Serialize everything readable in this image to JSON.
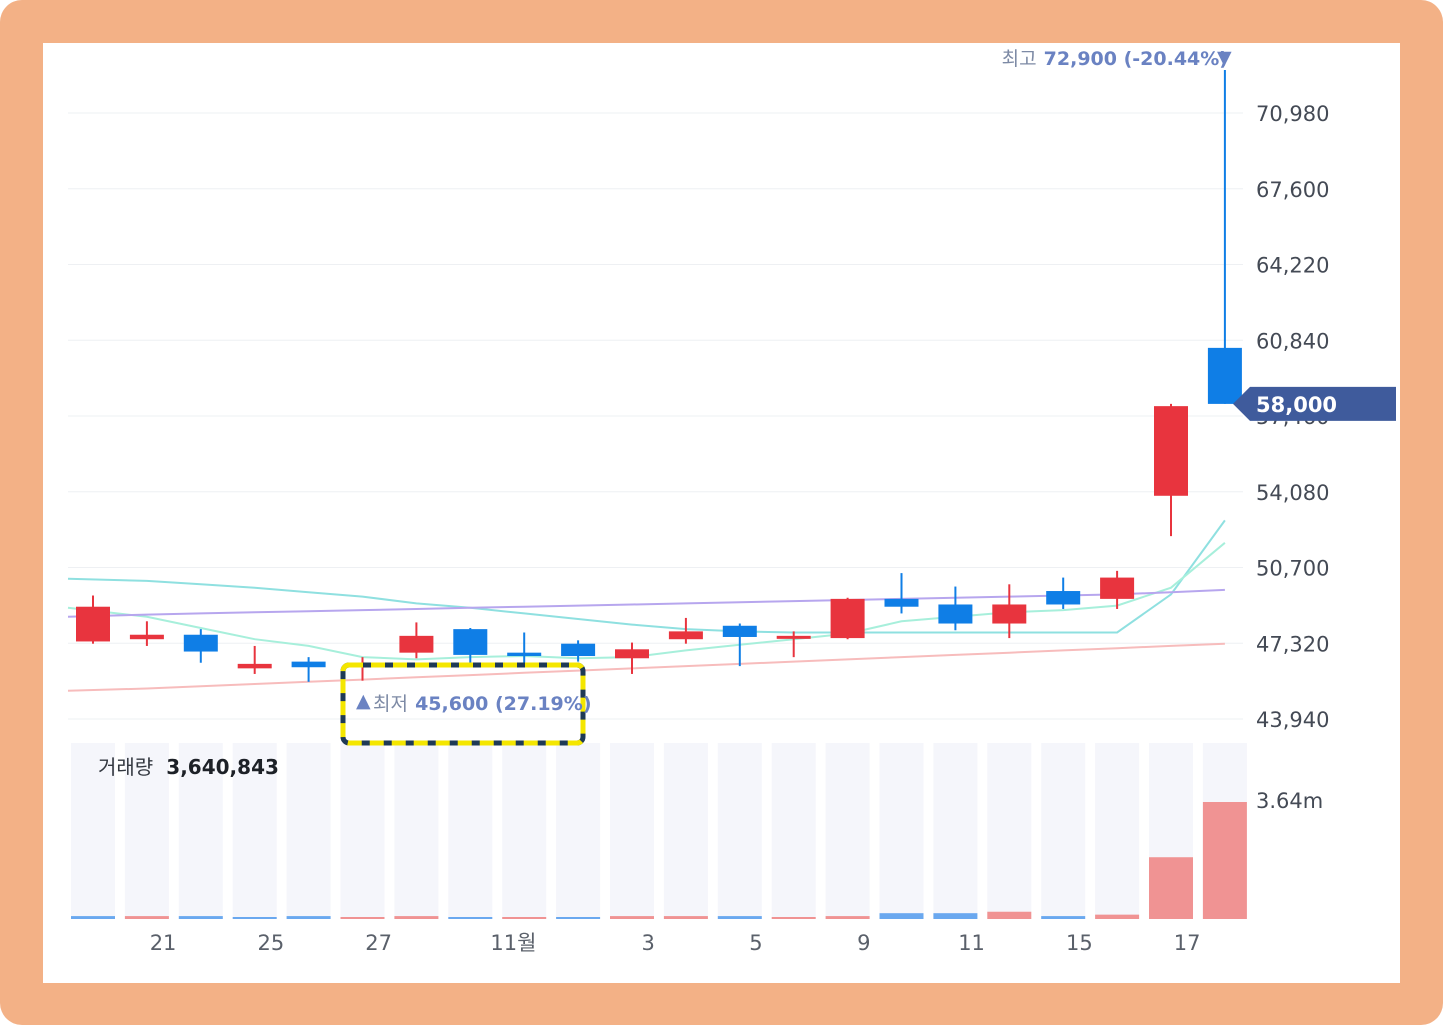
{
  "chart_data": {
    "type": "candlestick",
    "price_axis": {
      "ticks": [
        43940,
        47320,
        50700,
        54080,
        57460,
        60840,
        64220,
        67600,
        70980
      ],
      "tick_labels": [
        "43,940",
        "47,320",
        "50,700",
        "54,080",
        "57,460",
        "60,840",
        "64,220",
        "67,600",
        "70,980"
      ],
      "range": [
        43000,
        73500
      ]
    },
    "x_axis": {
      "labels": [
        {
          "text": "21",
          "index": 1.3
        },
        {
          "text": "25",
          "index": 3.3
        },
        {
          "text": "27",
          "index": 5.3
        },
        {
          "text": "11월",
          "index": 7.8
        },
        {
          "text": "3",
          "index": 10.3
        },
        {
          "text": "5",
          "index": 12.3
        },
        {
          "text": "9",
          "index": 14.3
        },
        {
          "text": "11",
          "index": 16.3
        },
        {
          "text": "15",
          "index": 18.3
        },
        {
          "text": "17",
          "index": 20.3
        }
      ]
    },
    "candles": [
      {
        "open": 47400,
        "close": 48950,
        "high": 49450,
        "low": 47300
      },
      {
        "open": 47500,
        "close": 47700,
        "high": 48300,
        "low": 47200
      },
      {
        "open": 47700,
        "close": 46950,
        "high": 47950,
        "low": 46450
      },
      {
        "open": 46200,
        "close": 46400,
        "high": 47200,
        "low": 45950
      },
      {
        "open": 46500,
        "close": 46250,
        "high": 46700,
        "low": 45600
      },
      {
        "open": 46300,
        "close": 46400,
        "high": 46700,
        "low": 45650
      },
      {
        "open": 46900,
        "close": 47650,
        "high": 48250,
        "low": 46650
      },
      {
        "open": 47950,
        "close": 46800,
        "high": 48000,
        "low": 46400
      },
      {
        "open": 46900,
        "close": 46750,
        "high": 47800,
        "low": 46400
      },
      {
        "open": 47300,
        "close": 46750,
        "high": 47450,
        "low": 46500
      },
      {
        "open": 46650,
        "close": 47050,
        "high": 47350,
        "low": 45950
      },
      {
        "open": 47500,
        "close": 47850,
        "high": 48450,
        "low": 47300
      },
      {
        "open": 48100,
        "close": 47600,
        "high": 48200,
        "low": 46300
      },
      {
        "open": 47600,
        "close": 47650,
        "high": 47850,
        "low": 46700
      },
      {
        "open": 47550,
        "close": 49300,
        "high": 49350,
        "low": 47500
      },
      {
        "open": 49300,
        "close": 48950,
        "high": 50450,
        "low": 48650
      },
      {
        "open": 49050,
        "close": 48200,
        "high": 49850,
        "low": 47900
      },
      {
        "open": 48200,
        "close": 49050,
        "high": 49950,
        "low": 47550
      },
      {
        "open": 49650,
        "close": 49050,
        "high": 50250,
        "low": 48850
      },
      {
        "open": 49300,
        "close": 50250,
        "high": 50550,
        "low": 48850
      },
      {
        "open": 53900,
        "close": 57900,
        "high": 58000,
        "low": 52100
      },
      {
        "open": 60500,
        "close": 58000,
        "high": 72900,
        "low": 58000
      }
    ],
    "moving_averages": [
      {
        "color": "#8fe0e0",
        "values": [
          50200,
          50100,
          49950,
          49800,
          49600,
          49400,
          49100,
          48900,
          48650,
          48400,
          48150,
          47950,
          47850,
          47800,
          47800,
          47800,
          47800,
          47800,
          47800,
          47800,
          49500,
          52800
        ]
      },
      {
        "color": "#a7efdb",
        "values": [
          48900,
          48500,
          48000,
          47500,
          47200,
          46700,
          46600,
          46700,
          46750,
          46650,
          46700,
          47000,
          47250,
          47500,
          47750,
          48300,
          48500,
          48700,
          48800,
          49000,
          49800,
          51800
        ]
      },
      {
        "color": "#b7a6ee",
        "values": [
          48500,
          48600,
          48650,
          48700,
          48750,
          48800,
          48850,
          48900,
          48950,
          49000,
          49050,
          49100,
          49150,
          49200,
          49250,
          49300,
          49350,
          49400,
          49450,
          49500,
          49600,
          49700
        ]
      },
      {
        "color": "#f7bcbc",
        "values": [
          45200,
          45300,
          45400,
          45500,
          45600,
          45700,
          45800,
          45900,
          46000,
          46100,
          46200,
          46300,
          46400,
          46500,
          46600,
          46700,
          46800,
          46900,
          47000,
          47100,
          47200,
          47300
        ]
      }
    ],
    "volume": [
      {
        "value": 0.04,
        "dir": "down"
      },
      {
        "value": 0.04,
        "dir": "up"
      },
      {
        "value": 0.04,
        "dir": "down"
      },
      {
        "value": 0.02,
        "dir": "down"
      },
      {
        "value": 0.04,
        "dir": "down"
      },
      {
        "value": 0.02,
        "dir": "up"
      },
      {
        "value": 0.04,
        "dir": "up"
      },
      {
        "value": 0.02,
        "dir": "down"
      },
      {
        "value": 0.02,
        "dir": "up"
      },
      {
        "value": 0.02,
        "dir": "down"
      },
      {
        "value": 0.04,
        "dir": "up"
      },
      {
        "value": 0.04,
        "dir": "up"
      },
      {
        "value": 0.04,
        "dir": "down"
      },
      {
        "value": 0.02,
        "dir": "up"
      },
      {
        "value": 0.04,
        "dir": "up"
      },
      {
        "value": 0.08,
        "dir": "down"
      },
      {
        "value": 0.08,
        "dir": "down"
      },
      {
        "value": 0.1,
        "dir": "up"
      },
      {
        "value": 0.04,
        "dir": "down"
      },
      {
        "value": 0.06,
        "dir": "up"
      },
      {
        "value": 0.85,
        "dir": "up"
      },
      {
        "value": 1.61,
        "dir": "up"
      }
    ],
    "volume_axis": {
      "tick_label": "3.64m",
      "tick_value": 1.61
    },
    "grid": true,
    "colors": {
      "up": "#e8343e",
      "down": "#0f7ee6",
      "up_volume": "#f09393",
      "down_volume": "#6aa8ef",
      "grid": "#eef0f3",
      "volume_bg": "#f5f6fb",
      "tag_bg": "#3f5b9c",
      "highlight_border": "#1f3a55",
      "highlight_dash": "#f4e600"
    }
  },
  "annotations": {
    "high": {
      "prefix": "최고",
      "value": "72,900 (-20.44%)",
      "arrow": "▼",
      "price": 72900
    },
    "low": {
      "prefix": "최저",
      "value": "45,600 (27.19%)",
      "arrow": "▲",
      "price": 45600
    }
  },
  "current_price_tag": {
    "label": "58,000",
    "price": 58000
  },
  "volume_panel": {
    "title": "거래량",
    "value": "3,640,843"
  }
}
